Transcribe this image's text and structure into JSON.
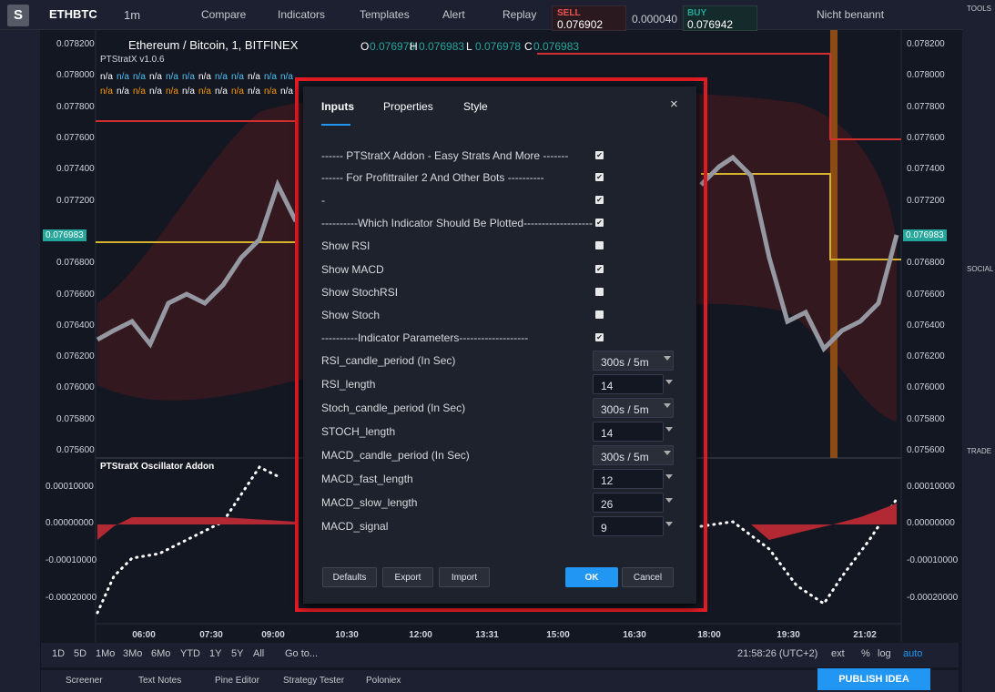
{
  "toolbar": {
    "logo": "S",
    "symbol": "ETHBTC",
    "interval": "1m",
    "items": [
      "Compare",
      "Indicators",
      "Templates",
      "Alert",
      "Replay"
    ],
    "sell_label": "SELL",
    "sell_price": "0.076902",
    "spread": "0.000040",
    "buy_label": "BUY",
    "buy_price": "0.076942",
    "layout": "Nicht benannt"
  },
  "right_toolbar": {
    "tools": "TOOLS",
    "social": "SOCIAL",
    "trade": "TRADE"
  },
  "legend": {
    "title": "Ethereum / Bitcoin, 1, BITFINEX",
    "o_label": "O",
    "o": "0.076978",
    "h_label": "H",
    "h": "0.076983",
    "l_label": "L",
    "l": "0.076978",
    "c_label": "C",
    "c": "0.076983",
    "study": "PTStratX v1.0.6",
    "na": "n/a"
  },
  "price_axis": [
    "0.078200",
    "0.078000",
    "0.077800",
    "0.077600",
    "0.077400",
    "0.077200",
    "0.076800",
    "0.076600",
    "0.076400",
    "0.076200",
    "0.076000",
    "0.075800",
    "0.075600"
  ],
  "current_price": "0.076983",
  "oscillator": {
    "title": "PTStratX Oscillator Addon",
    "axis": [
      "0.00010000",
      "0.00000000",
      "-0.00010000",
      "-0.00020000"
    ]
  },
  "time_axis": [
    "06:00",
    "07:30",
    "09:00",
    "10:30",
    "12:00",
    "13:31",
    "15:00",
    "16:30",
    "18:00",
    "19:30",
    "21:02"
  ],
  "bottom": {
    "ranges": [
      "1D",
      "5D",
      "1Mo",
      "3Mo",
      "6Mo",
      "YTD",
      "1Y",
      "5Y",
      "All"
    ],
    "goto": "Go to...",
    "clock": "21:58:26 (UTC+2)",
    "ext": "ext",
    "pct": "%",
    "log": "log",
    "auto": "auto"
  },
  "tabs": [
    "Screener",
    "Text Notes",
    "Pine Editor",
    "Strategy Tester",
    "Poloniex"
  ],
  "publish": "PUBLISH IDEA",
  "dialog": {
    "tabs": [
      "Inputs",
      "Properties",
      "Style"
    ],
    "close": "×",
    "checkboxes": [
      {
        "label": "------ PTStratX Addon - Easy Strats And More -------",
        "checked": true
      },
      {
        "label": "------ For Profittrailer 2 And Other Bots ----------",
        "checked": true
      },
      {
        "label": "-",
        "checked": true
      },
      {
        "label": "----------Which Indicator Should Be Plotted-------------------",
        "checked": true
      },
      {
        "label": "Show RSI",
        "checked": false
      },
      {
        "label": "Show MACD",
        "checked": true
      },
      {
        "label": "Show StochRSI",
        "checked": false
      },
      {
        "label": "Show Stoch",
        "checked": false
      },
      {
        "label": "----------Indicator Parameters-------------------",
        "checked": true
      }
    ],
    "inputs": [
      {
        "label": "RSI_candle_period (In Sec)",
        "value": "300s / 5m",
        "kind": "select"
      },
      {
        "label": "RSI_length",
        "value": "14",
        "kind": "number"
      },
      {
        "label": "Stoch_candle_period (In Sec)",
        "value": "300s / 5m",
        "kind": "select"
      },
      {
        "label": "STOCH_length",
        "value": "14",
        "kind": "number"
      },
      {
        "label": "MACD_candle_period (In Sec)",
        "value": "300s / 5m",
        "kind": "select"
      },
      {
        "label": "MACD_fast_length",
        "value": "12",
        "kind": "number"
      },
      {
        "label": "MACD_slow_length",
        "value": "26",
        "kind": "number"
      },
      {
        "label": "MACD_signal",
        "value": "9",
        "kind": "number"
      }
    ],
    "buttons": [
      "Defaults",
      "Export",
      "Import"
    ],
    "ok": "OK",
    "cancel": "Cancel"
  }
}
